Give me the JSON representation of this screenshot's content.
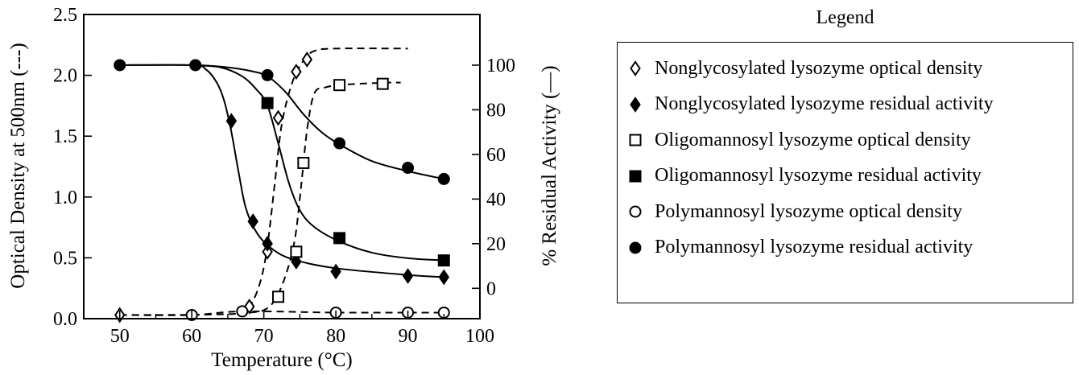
{
  "chart_data": {
    "type": "scatter",
    "xlabel": "Temperature (°C)",
    "ylabel_left": "Optical Density at 500nm (---)",
    "ylabel_right": "% Residual Activity (—)",
    "xlim": [
      45,
      100
    ],
    "ylim_left": [
      0,
      2.5
    ],
    "ylim_right": [
      -13.6,
      122.7
    ],
    "x_ticks": [
      50,
      60,
      70,
      80,
      90,
      100
    ],
    "y_ticks_left": [
      "0.0",
      "0.5",
      "1.0",
      "1.5",
      "2.0",
      "2.5"
    ],
    "y_ticks_right": [
      "0",
      "20",
      "40",
      "60",
      "80",
      "100"
    ],
    "grid": false,
    "legend_title": "Legend",
    "legend_position": "right",
    "series": [
      {
        "name": "Nonglycosylated lysozyme optical density",
        "marker": "diamond-open",
        "axis": "left",
        "line": "dashed",
        "x": [
          50,
          68,
          70.5,
          72,
          74.5,
          76
        ],
        "y": [
          0.03,
          0.1,
          0.55,
          1.65,
          2.03,
          2.13
        ],
        "curve_x": [
          50,
          66,
          68,
          69.5,
          70.5,
          71.5,
          72.5,
          74,
          75.5,
          77,
          80,
          90
        ],
        "curve_y": [
          0.03,
          0.04,
          0.1,
          0.3,
          0.6,
          1.1,
          1.6,
          1.95,
          2.12,
          2.2,
          2.22,
          2.22
        ]
      },
      {
        "name": "Nonglycosylated lysozyme  residual activity",
        "marker": "diamond-filled",
        "axis": "right",
        "line": "solid",
        "x": [
          65.5,
          68.5,
          70.5,
          74.5,
          80,
          90,
          95
        ],
        "y": [
          75,
          30,
          20,
          12,
          7.5,
          5.5,
          5
        ],
        "curve_x": [
          50,
          60,
          62,
          63.5,
          64.5,
          65.5,
          66.5,
          67.5,
          69,
          71,
          74,
          80,
          90,
          95
        ],
        "curve_y": [
          100,
          100,
          98,
          92,
          84,
          70,
          52,
          36,
          25,
          18,
          13,
          9,
          6,
          5
        ]
      },
      {
        "name": "Oligomannosyl lysozyme optical density",
        "marker": "square-open",
        "axis": "left",
        "line": "dashed",
        "x": [
          72,
          74.5,
          75.5,
          80.5,
          86.5
        ],
        "y": [
          0.18,
          0.55,
          1.28,
          1.92,
          1.93
        ],
        "curve_x": [
          68,
          70,
          71.5,
          73,
          74.3,
          75.2,
          76,
          77,
          78.5,
          80.5,
          83,
          87,
          89
        ],
        "curve_y": [
          0.05,
          0.07,
          0.15,
          0.35,
          0.65,
          1.1,
          1.55,
          1.85,
          1.9,
          1.92,
          1.93,
          1.94,
          1.94
        ]
      },
      {
        "name": "Oligomannosyl lysozyme residual activity",
        "marker": "square-filled",
        "axis": "right",
        "line": "solid",
        "x": [
          70.5,
          80.5,
          95
        ],
        "y": [
          83,
          22.5,
          12.5
        ],
        "curve_x": [
          60,
          64,
          67,
          69,
          70.5,
          72,
          73.5,
          75,
          77,
          80.5,
          85,
          90,
          95
        ],
        "curve_y": [
          100,
          99,
          95,
          89,
          82,
          65,
          47,
          35,
          27.5,
          21,
          16,
          13.5,
          12.5
        ]
      },
      {
        "name": "Polymannosyl lysozyme optical density",
        "marker": "circle-open",
        "axis": "left",
        "line": "dashed",
        "x": [
          60,
          67,
          80,
          90,
          95
        ],
        "y": [
          0.03,
          0.06,
          0.05,
          0.05,
          0.05
        ],
        "curve_x": [
          50,
          60,
          67,
          80,
          90,
          95
        ],
        "curve_y": [
          0.03,
          0.03,
          0.06,
          0.05,
          0.05,
          0.05
        ]
      },
      {
        "name": "Polymannosyl lysozyme residual activity",
        "marker": "circle-filled",
        "axis": "right",
        "line": "solid",
        "x": [
          50,
          60.5,
          70.5,
          80.5,
          90,
          95
        ],
        "y": [
          100,
          100,
          95.5,
          65,
          54,
          49
        ],
        "curve_x": [
          50,
          60.5,
          65,
          68,
          70.5,
          73,
          75.5,
          78,
          80.5,
          85,
          90,
          95
        ],
        "curve_y": [
          100,
          100,
          99,
          97.5,
          95,
          88,
          78,
          70,
          64.5,
          57,
          52.5,
          49
        ]
      }
    ]
  }
}
